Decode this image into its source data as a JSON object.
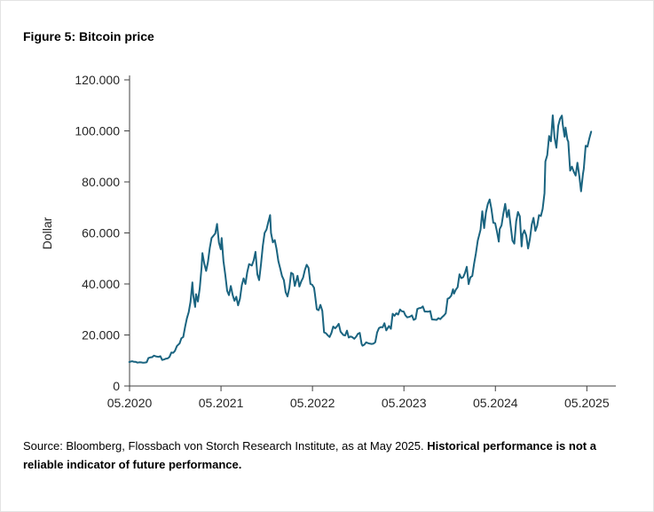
{
  "figure": {
    "title": "Figure 5: Bitcoin price"
  },
  "source": {
    "normal": "Source: Bloomberg, Flossbach von Storch Research Institute, as at May 2025. ",
    "bold": "Historical performance is not a reliable indicator of future performance."
  },
  "colors": {
    "line": "#1A6480",
    "axis": "#404040",
    "text": "#262626"
  },
  "chart_data": {
    "type": "line",
    "title": "Figure 5: Bitcoin price",
    "xlabel": "",
    "ylabel": "Dollar",
    "ylim": [
      0,
      120000
    ],
    "xlim": [
      2020.333,
      2025.65
    ],
    "grid": false,
    "legend": "none",
    "y_ticks": [
      {
        "v": 0,
        "label": "0"
      },
      {
        "v": 20000,
        "label": "20.000"
      },
      {
        "v": 40000,
        "label": "40.000"
      },
      {
        "v": 60000,
        "label": "60.000"
      },
      {
        "v": 80000,
        "label": "80.000"
      },
      {
        "v": 100000,
        "label": "100.000"
      },
      {
        "v": 120000,
        "label": "120.000"
      }
    ],
    "x_ticks": [
      {
        "v": 2020.333,
        "label": "05.2020"
      },
      {
        "v": 2021.333,
        "label": "05.2021"
      },
      {
        "v": 2022.333,
        "label": "05.2022"
      },
      {
        "v": 2023.333,
        "label": "05.2023"
      },
      {
        "v": 2024.333,
        "label": "05.2024"
      },
      {
        "v": 2025.333,
        "label": "05.2025"
      }
    ],
    "series": [
      {
        "name": "Bitcoin price",
        "unit": "Dollar",
        "color": "#1A6480",
        "points": [
          [
            2020.33,
            9400
          ],
          [
            2020.36,
            9700
          ],
          [
            2020.38,
            9500
          ],
          [
            2020.4,
            9450
          ],
          [
            2020.42,
            9150
          ],
          [
            2020.44,
            9300
          ],
          [
            2020.46,
            9250
          ],
          [
            2020.48,
            9100
          ],
          [
            2020.5,
            9200
          ],
          [
            2020.52,
            9300
          ],
          [
            2020.54,
            11000
          ],
          [
            2020.56,
            11200
          ],
          [
            2020.58,
            11300
          ],
          [
            2020.6,
            11900
          ],
          [
            2020.62,
            11600
          ],
          [
            2020.65,
            11400
          ],
          [
            2020.67,
            11700
          ],
          [
            2020.69,
            10200
          ],
          [
            2020.71,
            10400
          ],
          [
            2020.73,
            10700
          ],
          [
            2020.75,
            10800
          ],
          [
            2020.77,
            11400
          ],
          [
            2020.79,
            13100
          ],
          [
            2020.81,
            13000
          ],
          [
            2020.83,
            13800
          ],
          [
            2020.85,
            15600
          ],
          [
            2020.87,
            16300
          ],
          [
            2020.88,
            16700
          ],
          [
            2020.9,
            18700
          ],
          [
            2020.92,
            19200
          ],
          [
            2020.94,
            23200
          ],
          [
            2020.96,
            26500
          ],
          [
            2020.98,
            29000
          ],
          [
            2021.0,
            33000
          ],
          [
            2021.02,
            40600
          ],
          [
            2021.03,
            35500
          ],
          [
            2021.05,
            31000
          ],
          [
            2021.06,
            36000
          ],
          [
            2021.08,
            33100
          ],
          [
            2021.1,
            38300
          ],
          [
            2021.12,
            46300
          ],
          [
            2021.13,
            52100
          ],
          [
            2021.15,
            48000
          ],
          [
            2021.17,
            45100
          ],
          [
            2021.19,
            48500
          ],
          [
            2021.21,
            54100
          ],
          [
            2021.23,
            58000
          ],
          [
            2021.25,
            58900
          ],
          [
            2021.27,
            59800
          ],
          [
            2021.29,
            63500
          ],
          [
            2021.31,
            56200
          ],
          [
            2021.33,
            53600
          ],
          [
            2021.34,
            58000
          ],
          [
            2021.36,
            49000
          ],
          [
            2021.38,
            43500
          ],
          [
            2021.4,
            37300
          ],
          [
            2021.42,
            35600
          ],
          [
            2021.44,
            39200
          ],
          [
            2021.46,
            35700
          ],
          [
            2021.48,
            33400
          ],
          [
            2021.5,
            35000
          ],
          [
            2021.52,
            31600
          ],
          [
            2021.54,
            34200
          ],
          [
            2021.56,
            39500
          ],
          [
            2021.58,
            42200
          ],
          [
            2021.6,
            40000
          ],
          [
            2021.62,
            44600
          ],
          [
            2021.64,
            47800
          ],
          [
            2021.67,
            47200
          ],
          [
            2021.69,
            49300
          ],
          [
            2021.71,
            52600
          ],
          [
            2021.73,
            43800
          ],
          [
            2021.75,
            41500
          ],
          [
            2021.77,
            47700
          ],
          [
            2021.79,
            55000
          ],
          [
            2021.81,
            60000
          ],
          [
            2021.83,
            61300
          ],
          [
            2021.85,
            64300
          ],
          [
            2021.87,
            67000
          ],
          [
            2021.88,
            60000
          ],
          [
            2021.9,
            56300
          ],
          [
            2021.92,
            57200
          ],
          [
            2021.94,
            53800
          ],
          [
            2021.96,
            48900
          ],
          [
            2021.98,
            46200
          ],
          [
            2022.0,
            43100
          ],
          [
            2022.02,
            41500
          ],
          [
            2022.04,
            36800
          ],
          [
            2022.06,
            35100
          ],
          [
            2022.08,
            38500
          ],
          [
            2022.1,
            44400
          ],
          [
            2022.12,
            43900
          ],
          [
            2022.14,
            39200
          ],
          [
            2022.17,
            43200
          ],
          [
            2022.19,
            39000
          ],
          [
            2022.21,
            41000
          ],
          [
            2022.23,
            42400
          ],
          [
            2022.25,
            45500
          ],
          [
            2022.27,
            47500
          ],
          [
            2022.29,
            46300
          ],
          [
            2022.31,
            40000
          ],
          [
            2022.33,
            39700
          ],
          [
            2022.35,
            38500
          ],
          [
            2022.36,
            36000
          ],
          [
            2022.38,
            30100
          ],
          [
            2022.4,
            29700
          ],
          [
            2022.42,
            31800
          ],
          [
            2022.44,
            29500
          ],
          [
            2022.46,
            21000
          ],
          [
            2022.48,
            20700
          ],
          [
            2022.5,
            19900
          ],
          [
            2022.52,
            19200
          ],
          [
            2022.54,
            20800
          ],
          [
            2022.56,
            23300
          ],
          [
            2022.58,
            22600
          ],
          [
            2022.6,
            23300
          ],
          [
            2022.62,
            24400
          ],
          [
            2022.64,
            21300
          ],
          [
            2022.67,
            20000
          ],
          [
            2022.69,
            19800
          ],
          [
            2022.71,
            21700
          ],
          [
            2022.73,
            19000
          ],
          [
            2022.75,
            19400
          ],
          [
            2022.77,
            19100
          ],
          [
            2022.79,
            18500
          ],
          [
            2022.81,
            19300
          ],
          [
            2022.83,
            20500
          ],
          [
            2022.85,
            20800
          ],
          [
            2022.87,
            16500
          ],
          [
            2022.88,
            15800
          ],
          [
            2022.9,
            16200
          ],
          [
            2022.92,
            17100
          ],
          [
            2022.94,
            16800
          ],
          [
            2022.96,
            16600
          ],
          [
            2022.98,
            16500
          ],
          [
            2023.0,
            16600
          ],
          [
            2023.02,
            17200
          ],
          [
            2023.04,
            21000
          ],
          [
            2023.06,
            22700
          ],
          [
            2023.08,
            23100
          ],
          [
            2023.1,
            23000
          ],
          [
            2023.12,
            24600
          ],
          [
            2023.14,
            21800
          ],
          [
            2023.17,
            23500
          ],
          [
            2023.19,
            22400
          ],
          [
            2023.21,
            28300
          ],
          [
            2023.23,
            27500
          ],
          [
            2023.25,
            28500
          ],
          [
            2023.27,
            28000
          ],
          [
            2023.29,
            30000
          ],
          [
            2023.31,
            29300
          ],
          [
            2023.33,
            29200
          ],
          [
            2023.35,
            27700
          ],
          [
            2023.37,
            26900
          ],
          [
            2023.4,
            27200
          ],
          [
            2023.42,
            27700
          ],
          [
            2023.44,
            25900
          ],
          [
            2023.46,
            26300
          ],
          [
            2023.48,
            30200
          ],
          [
            2023.5,
            30500
          ],
          [
            2023.52,
            30600
          ],
          [
            2023.54,
            31200
          ],
          [
            2023.56,
            29200
          ],
          [
            2023.58,
            29200
          ],
          [
            2023.6,
            29100
          ],
          [
            2023.62,
            29400
          ],
          [
            2023.64,
            26100
          ],
          [
            2023.67,
            26000
          ],
          [
            2023.69,
            25900
          ],
          [
            2023.71,
            26600
          ],
          [
            2023.73,
            26200
          ],
          [
            2023.75,
            27000
          ],
          [
            2023.77,
            27600
          ],
          [
            2023.79,
            28500
          ],
          [
            2023.81,
            34200
          ],
          [
            2023.83,
            34500
          ],
          [
            2023.85,
            35400
          ],
          [
            2023.87,
            37900
          ],
          [
            2023.88,
            36200
          ],
          [
            2023.9,
            37700
          ],
          [
            2023.92,
            38700
          ],
          [
            2023.94,
            43800
          ],
          [
            2023.96,
            42300
          ],
          [
            2023.98,
            42600
          ],
          [
            2024.0,
            44200
          ],
          [
            2024.02,
            46700
          ],
          [
            2024.04,
            39900
          ],
          [
            2024.06,
            42600
          ],
          [
            2024.08,
            43100
          ],
          [
            2024.1,
            47800
          ],
          [
            2024.12,
            52000
          ],
          [
            2024.14,
            57000
          ],
          [
            2024.17,
            61200
          ],
          [
            2024.19,
            68500
          ],
          [
            2024.21,
            61900
          ],
          [
            2024.23,
            68000
          ],
          [
            2024.25,
            71300
          ],
          [
            2024.27,
            73100
          ],
          [
            2024.29,
            69400
          ],
          [
            2024.31,
            64000
          ],
          [
            2024.33,
            63800
          ],
          [
            2024.35,
            60600
          ],
          [
            2024.37,
            56600
          ],
          [
            2024.38,
            61500
          ],
          [
            2024.4,
            63000
          ],
          [
            2024.42,
            67500
          ],
          [
            2024.44,
            71400
          ],
          [
            2024.46,
            66200
          ],
          [
            2024.48,
            69000
          ],
          [
            2024.5,
            62700
          ],
          [
            2024.52,
            57000
          ],
          [
            2024.54,
            55800
          ],
          [
            2024.56,
            64600
          ],
          [
            2024.58,
            68200
          ],
          [
            2024.6,
            66500
          ],
          [
            2024.62,
            54700
          ],
          [
            2024.63,
            59400
          ],
          [
            2024.65,
            61000
          ],
          [
            2024.67,
            59000
          ],
          [
            2024.69,
            53900
          ],
          [
            2024.71,
            57500
          ],
          [
            2024.73,
            63200
          ],
          [
            2024.75,
            65900
          ],
          [
            2024.77,
            60800
          ],
          [
            2024.79,
            62900
          ],
          [
            2024.81,
            67000
          ],
          [
            2024.83,
            66600
          ],
          [
            2024.85,
            69400
          ],
          [
            2024.87,
            75600
          ],
          [
            2024.88,
            88000
          ],
          [
            2024.9,
            90500
          ],
          [
            2024.92,
            98000
          ],
          [
            2024.94,
            95900
          ],
          [
            2024.96,
            106100
          ],
          [
            2024.98,
            97500
          ],
          [
            2025.0,
            93400
          ],
          [
            2025.02,
            102100
          ],
          [
            2025.04,
            104700
          ],
          [
            2025.06,
            106000
          ],
          [
            2025.07,
            102400
          ],
          [
            2025.09,
            97700
          ],
          [
            2025.1,
            101300
          ],
          [
            2025.12,
            96600
          ],
          [
            2025.13,
            95800
          ],
          [
            2025.15,
            84400
          ],
          [
            2025.17,
            86000
          ],
          [
            2025.19,
            84000
          ],
          [
            2025.21,
            82500
          ],
          [
            2025.23,
            87500
          ],
          [
            2025.25,
            82400
          ],
          [
            2025.27,
            76300
          ],
          [
            2025.29,
            83000
          ],
          [
            2025.3,
            85200
          ],
          [
            2025.32,
            94200
          ],
          [
            2025.34,
            93800
          ],
          [
            2025.36,
            97000
          ],
          [
            2025.38,
            99700
          ]
        ]
      }
    ]
  }
}
